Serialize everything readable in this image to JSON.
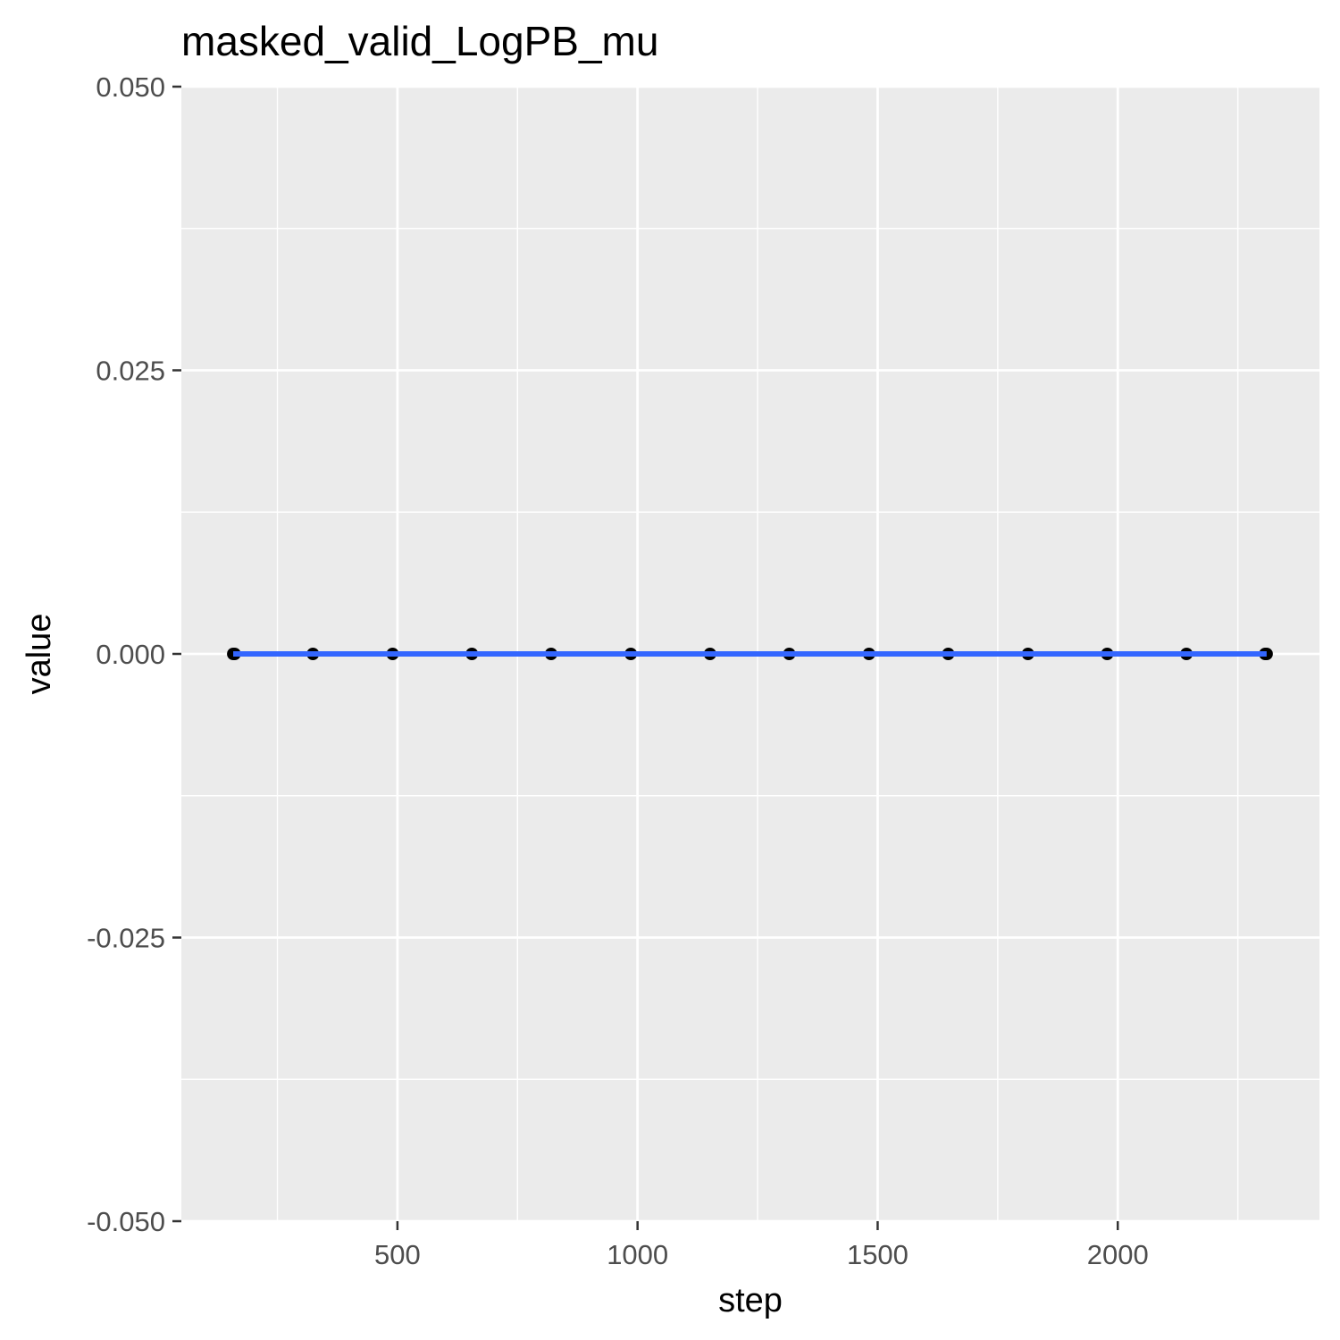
{
  "chart_data": {
    "type": "line",
    "title": "masked_valid_LogPB_mu",
    "xlabel": "step",
    "ylabel": "value",
    "xlim": [
      50,
      2420
    ],
    "ylim": [
      -0.05,
      0.05
    ],
    "x_ticks": [
      500,
      1000,
      1500,
      2000
    ],
    "x_tick_labels": [
      "500",
      "1000",
      "1500",
      "2000"
    ],
    "y_ticks": [
      -0.05,
      -0.025,
      0,
      0.025,
      0.05
    ],
    "y_tick_labels": [
      "-0.050",
      "-0.025",
      "0.000",
      "0.025",
      "0.050"
    ],
    "x_minor_ticks": [
      250,
      750,
      1250,
      1750,
      2250
    ],
    "y_minor_ticks": [
      -0.0375,
      -0.0125,
      0.0125,
      0.0375
    ],
    "grid": true,
    "series": [
      {
        "type": "scatter",
        "color": "#000000",
        "x": [
          158,
          161,
          324,
          490,
          655,
          820,
          986,
          1151,
          1316,
          1482,
          1647,
          1813,
          1978,
          2143,
          2307,
          2310
        ],
        "y": [
          0,
          0,
          0,
          0,
          0,
          0,
          0,
          0,
          0,
          0,
          0,
          0,
          0,
          0,
          0,
          0
        ]
      },
      {
        "type": "line",
        "color": "#3366ff",
        "x": [
          158,
          2310
        ],
        "y": [
          0,
          0
        ]
      }
    ],
    "colors": {
      "panel_background": "#ebebeb",
      "grid": "#ffffff",
      "tick_text": "#4d4d4d",
      "tick_mark": "#333333"
    }
  }
}
